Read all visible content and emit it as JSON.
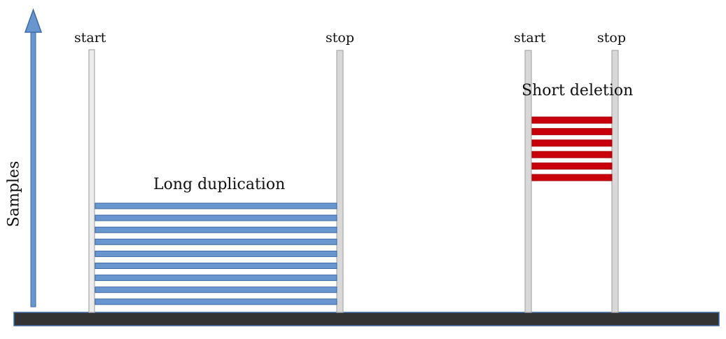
{
  "y_axis_label": "Samples",
  "markers": {
    "start": "start",
    "stop": "stop"
  },
  "events": [
    {
      "label": "Long duplication",
      "color": "#6a96cf",
      "stroke": "#3e6aa6",
      "bar_count": 9
    },
    {
      "label": "Short deletion",
      "color": "#c8000c",
      "stroke": "#a80008",
      "bar_count": 6
    }
  ],
  "colors": {
    "axis_arrow": "#6a96cf",
    "baseline": "#333333",
    "post": "#d8d8d8"
  }
}
